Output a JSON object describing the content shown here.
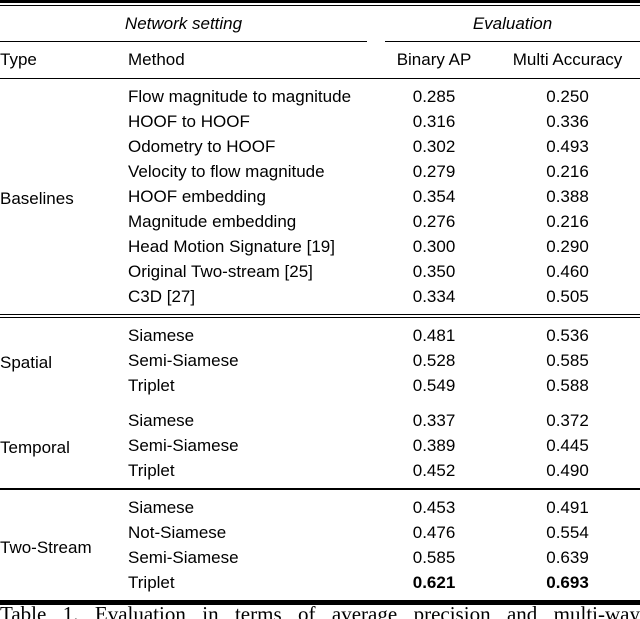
{
  "table": {
    "group_headers": [
      {
        "label": "Network setting"
      },
      {
        "label": "Evaluation"
      }
    ],
    "columns": [
      "Type",
      "Method",
      "Binary AP",
      "Multi Accuracy"
    ],
    "groups": [
      {
        "type": "Baselines",
        "rule_after": "double",
        "rows": [
          {
            "method": "Flow magnitude to magnitude",
            "binary_ap": "0.285",
            "multi_accuracy": "0.250"
          },
          {
            "method": "HOOF to HOOF",
            "binary_ap": "0.316",
            "multi_accuracy": "0.336"
          },
          {
            "method": "Odometry to HOOF",
            "binary_ap": "0.302",
            "multi_accuracy": "0.493"
          },
          {
            "method": "Velocity to flow magnitude",
            "binary_ap": "0.279",
            "multi_accuracy": "0.216"
          },
          {
            "method": "HOOF embedding",
            "binary_ap": "0.354",
            "multi_accuracy": "0.388"
          },
          {
            "method": "Magnitude embedding",
            "binary_ap": "0.276",
            "multi_accuracy": "0.216"
          },
          {
            "method": "Head Motion Signature [19]",
            "binary_ap": "0.300",
            "multi_accuracy": "0.290"
          },
          {
            "method": "Original Two-stream [25]",
            "binary_ap": "0.350",
            "multi_accuracy": "0.460"
          },
          {
            "method": "C3D [27]",
            "binary_ap": "0.334",
            "multi_accuracy": "0.505"
          }
        ]
      },
      {
        "type": "Spatial",
        "rule_after": "none",
        "rows": [
          {
            "method": "Siamese",
            "binary_ap": "0.481",
            "multi_accuracy": "0.536"
          },
          {
            "method": "Semi-Siamese",
            "binary_ap": "0.528",
            "multi_accuracy": "0.585"
          },
          {
            "method": "Triplet",
            "binary_ap": "0.549",
            "multi_accuracy": "0.588"
          }
        ]
      },
      {
        "type": "Temporal",
        "rule_after": "single",
        "rows": [
          {
            "method": "Siamese",
            "binary_ap": "0.337",
            "multi_accuracy": "0.372"
          },
          {
            "method": "Semi-Siamese",
            "binary_ap": "0.389",
            "multi_accuracy": "0.445"
          },
          {
            "method": "Triplet",
            "binary_ap": "0.452",
            "multi_accuracy": "0.490"
          }
        ]
      },
      {
        "type": "Two-Stream",
        "rule_after": "bottom",
        "rows": [
          {
            "method": "Siamese",
            "binary_ap": "0.453",
            "multi_accuracy": "0.491"
          },
          {
            "method": "Not-Siamese",
            "binary_ap": "0.476",
            "multi_accuracy": "0.554"
          },
          {
            "method": "Semi-Siamese",
            "binary_ap": "0.585",
            "multi_accuracy": "0.639"
          },
          {
            "method": "Triplet",
            "binary_ap": "0.621",
            "multi_accuracy": "0.693",
            "bold": true
          }
        ]
      }
    ]
  },
  "caption": {
    "text": "Table 1. Evaluation in terms of average precision and multi-way"
  },
  "colors": {
    "text": "#000000",
    "background": "#ffffff",
    "rule": "#000000"
  }
}
